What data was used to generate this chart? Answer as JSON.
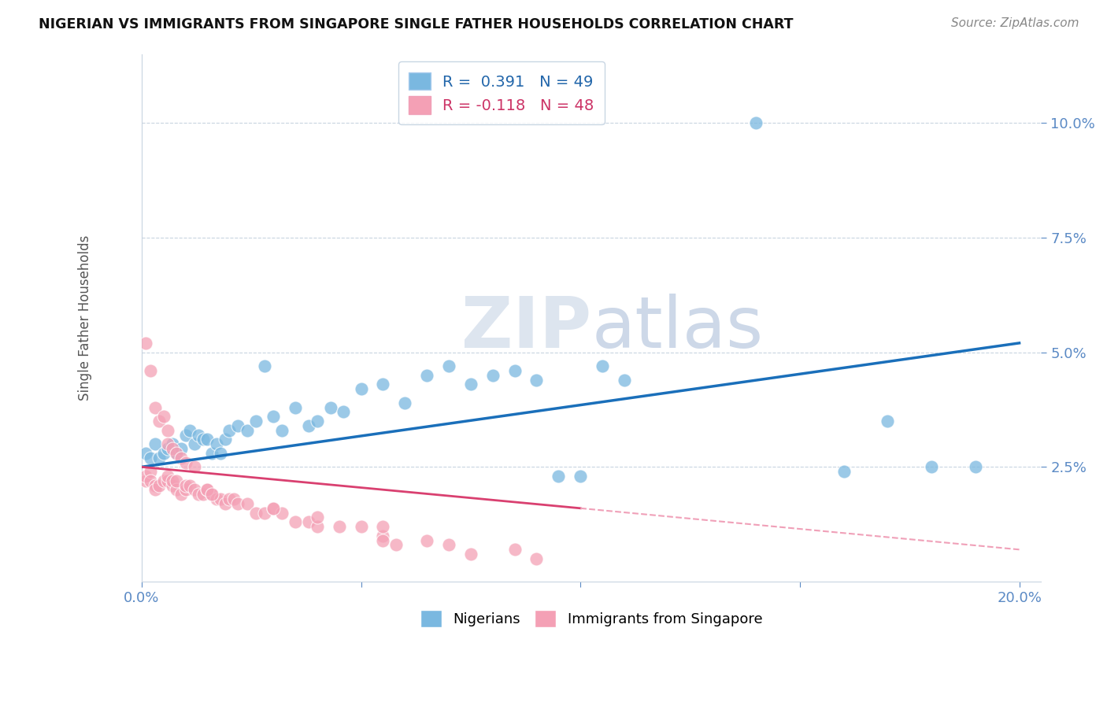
{
  "title": "NIGERIAN VS IMMIGRANTS FROM SINGAPORE SINGLE FATHER HOUSEHOLDS CORRELATION CHART",
  "source": "Source: ZipAtlas.com",
  "ylabel": "Single Father Households",
  "xlim": [
    0.0,
    0.205
  ],
  "ylim": [
    0.0,
    0.115
  ],
  "ytick_labels": [
    "2.5%",
    "5.0%",
    "7.5%",
    "10.0%"
  ],
  "ytick_values": [
    0.025,
    0.05,
    0.075,
    0.1
  ],
  "blue_R": 0.391,
  "blue_N": 49,
  "pink_R": -0.118,
  "pink_N": 48,
  "blue_color": "#7ab8e0",
  "pink_color": "#f4a0b5",
  "trendline_blue_color": "#1a6fba",
  "trendline_pink_solid_color": "#d94070",
  "trendline_pink_dash_color": "#f0a0b8",
  "watermark_color": "#cdd8e8",
  "blue_x": [
    0.001,
    0.002,
    0.003,
    0.004,
    0.005,
    0.006,
    0.007,
    0.008,
    0.009,
    0.01,
    0.011,
    0.012,
    0.013,
    0.014,
    0.015,
    0.016,
    0.017,
    0.018,
    0.019,
    0.02,
    0.022,
    0.024,
    0.026,
    0.028,
    0.03,
    0.032,
    0.035,
    0.038,
    0.04,
    0.043,
    0.046,
    0.05,
    0.055,
    0.06,
    0.065,
    0.07,
    0.075,
    0.08,
    0.085,
    0.09,
    0.095,
    0.1,
    0.105,
    0.11,
    0.14,
    0.16,
    0.17,
    0.18,
    0.19
  ],
  "blue_y": [
    0.028,
    0.027,
    0.03,
    0.027,
    0.028,
    0.029,
    0.03,
    0.028,
    0.029,
    0.032,
    0.033,
    0.03,
    0.032,
    0.031,
    0.031,
    0.028,
    0.03,
    0.028,
    0.031,
    0.033,
    0.034,
    0.033,
    0.035,
    0.047,
    0.036,
    0.033,
    0.038,
    0.034,
    0.035,
    0.038,
    0.037,
    0.042,
    0.043,
    0.039,
    0.045,
    0.047,
    0.043,
    0.045,
    0.046,
    0.044,
    0.023,
    0.023,
    0.047,
    0.044,
    0.1,
    0.024,
    0.035,
    0.025,
    0.025
  ],
  "pink_x": [
    0.001,
    0.001,
    0.002,
    0.002,
    0.003,
    0.003,
    0.004,
    0.005,
    0.006,
    0.006,
    0.007,
    0.007,
    0.008,
    0.008,
    0.009,
    0.01,
    0.01,
    0.011,
    0.012,
    0.013,
    0.014,
    0.015,
    0.016,
    0.017,
    0.018,
    0.019,
    0.02,
    0.021,
    0.022,
    0.024,
    0.026,
    0.028,
    0.03,
    0.032,
    0.035,
    0.038,
    0.04,
    0.04,
    0.045,
    0.05,
    0.055,
    0.055,
    0.058,
    0.065,
    0.07,
    0.075,
    0.085,
    0.09
  ],
  "pink_y": [
    0.022,
    0.023,
    0.024,
    0.022,
    0.021,
    0.02,
    0.021,
    0.022,
    0.022,
    0.023,
    0.021,
    0.022,
    0.02,
    0.022,
    0.019,
    0.02,
    0.021,
    0.021,
    0.02,
    0.019,
    0.019,
    0.02,
    0.019,
    0.018,
    0.018,
    0.017,
    0.018,
    0.018,
    0.017,
    0.017,
    0.015,
    0.015,
    0.016,
    0.015,
    0.013,
    0.013,
    0.012,
    0.014,
    0.012,
    0.012,
    0.01,
    0.009,
    0.008,
    0.009,
    0.008,
    0.006,
    0.007,
    0.005
  ],
  "pink_outlier_x": [
    0.001,
    0.002,
    0.003,
    0.004,
    0.005,
    0.006,
    0.006,
    0.007,
    0.008,
    0.009,
    0.01,
    0.012,
    0.015,
    0.016,
    0.03,
    0.055
  ],
  "pink_outlier_y": [
    0.052,
    0.046,
    0.038,
    0.035,
    0.036,
    0.033,
    0.03,
    0.029,
    0.028,
    0.027,
    0.026,
    0.025,
    0.02,
    0.019,
    0.016,
    0.012
  ],
  "blue_intercept": 0.025,
  "blue_slope": 0.135,
  "pink_intercept": 0.025,
  "pink_slope": -0.09,
  "background_color": "#ffffff",
  "grid_color": "#c8d4e0"
}
